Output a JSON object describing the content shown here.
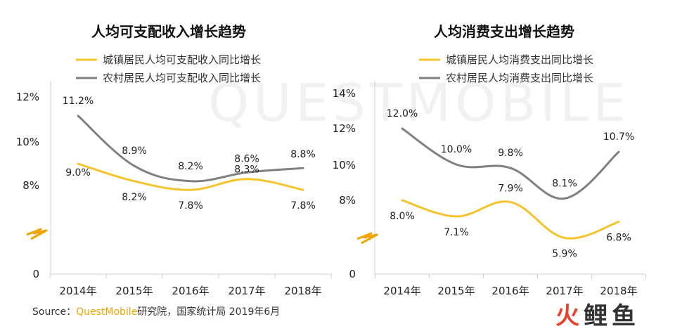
{
  "watermark": "QUESTMOBILE",
  "source": {
    "prefix": "Source：",
    "brand": "QuestMobile",
    "suffix": "研究院，国家统计局 2019年6月"
  },
  "logo": {
    "part1": "火",
    "part2": "鲤鱼"
  },
  "colors": {
    "urban": "#F5C32C",
    "rural": "#808080",
    "break": "#F0A400"
  },
  "chart_data": [
    {
      "type": "line",
      "title": "人均可支配收入增长趋势",
      "categories": [
        "2014年",
        "2015年",
        "2016年",
        "2017年",
        "2018年"
      ],
      "yticks": [
        "12%",
        "10%",
        "8%",
        "0"
      ],
      "axis_break": true,
      "series": [
        {
          "name": "城镇居民人均可支配收入同比增长",
          "values": [
            9.0,
            8.2,
            7.8,
            8.3,
            7.8
          ],
          "labels": [
            "9.0%",
            "8.2%",
            "7.8%",
            "8.3%",
            "7.8%"
          ]
        },
        {
          "name": "农村居民人均可支配收入同比增长",
          "values": [
            11.2,
            8.9,
            8.2,
            8.6,
            8.8
          ],
          "labels": [
            "11.2%",
            "8.9%",
            "8.2%",
            "8.6%",
            "8.8%"
          ]
        }
      ]
    },
    {
      "type": "line",
      "title": "人均消费支出增长趋势",
      "categories": [
        "2014年",
        "2015年",
        "2016年",
        "2017年",
        "2018年"
      ],
      "yticks": [
        "14%",
        "12%",
        "10%",
        "8%",
        "0"
      ],
      "axis_break": true,
      "series": [
        {
          "name": "城镇居民人均消费支出同比增长",
          "values": [
            8.0,
            7.1,
            7.9,
            5.9,
            6.8
          ],
          "labels": [
            "8.0%",
            "7.1%",
            "7.9%",
            "5.9%",
            "6.8%"
          ]
        },
        {
          "name": "农村居民人均消费支出同比增长",
          "values": [
            12.0,
            10.0,
            9.8,
            8.1,
            10.7
          ],
          "labels": [
            "12.0%",
            "10.0%",
            "9.8%",
            "8.1%",
            "10.7%"
          ]
        }
      ]
    }
  ]
}
